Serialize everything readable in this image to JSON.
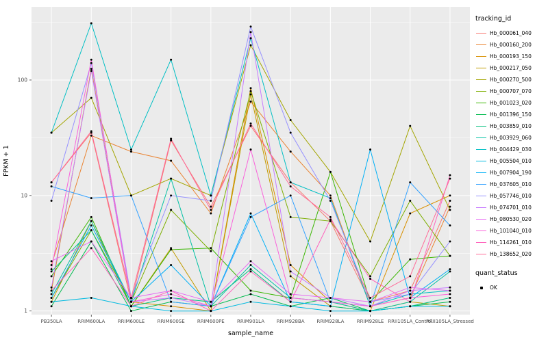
{
  "chart": {
    "chart_data": {
      "type": "line",
      "title": "",
      "xlabel": "sample_name",
      "ylabel": "FPKM + 1",
      "yscale": "log10",
      "grid": true,
      "legend_position": "right"
    },
    "xlabel": "sample_name",
    "ylabel": "FPKM + 1",
    "ylim": [
      0.93,
      430
    ],
    "yticks": [
      1,
      10,
      100
    ],
    "yminor": [
      3.162,
      31.62,
      316.2
    ],
    "categories": [
      "PB350LA",
      "RRIM600LA",
      "RRIM600LE",
      "RRIM600SE",
      "RRIM600PE",
      "RRIM901LA",
      "RRIM928BA",
      "RRIM928LA",
      "RRIM928LE",
      "RRII105LA_Control",
      "RRII105LA_Stressed"
    ],
    "legend_title": "tracking_id",
    "legend2_title": "quant_status",
    "legend2_items": [
      {
        "label": "OK"
      }
    ],
    "colors": {
      "panel_bg": "#EBEBEB",
      "grid": "#FFFFFF",
      "point": "#000000",
      "axis_text": "#4D4D4D"
    },
    "series": [
      {
        "name": "Hb_000061_040",
        "color": "#F8766D",
        "values": [
          13,
          35,
          1.2,
          30,
          8,
          40,
          13,
          6,
          1.2,
          1.5,
          9
        ]
      },
      {
        "name": "Hb_000160_200",
        "color": "#EA8331",
        "values": [
          2.5,
          33,
          24,
          20,
          7,
          65,
          24,
          10,
          1.1,
          1.3,
          8
        ]
      },
      {
        "name": "Hb_000193_150",
        "color": "#D89000",
        "values": [
          1.5,
          125,
          1.2,
          1.1,
          1.0,
          85,
          2.5,
          1.2,
          1.0,
          7,
          10
        ]
      },
      {
        "name": "Hb_000217_050",
        "color": "#C09B00",
        "values": [
          1.2,
          6,
          1.1,
          3.5,
          1.0,
          75,
          2.0,
          1.1,
          1.0,
          1.2,
          1.1
        ]
      },
      {
        "name": "Hb_000270_500",
        "color": "#A3A500",
        "values": [
          35,
          70,
          10,
          14,
          10,
          200,
          45,
          16,
          4,
          40,
          7.5
        ]
      },
      {
        "name": "Hb_000707_070",
        "color": "#7CAE00",
        "values": [
          1.3,
          5,
          1.2,
          7.5,
          3.3,
          80,
          6.5,
          6,
          2,
          9,
          3
        ]
      },
      {
        "name": "Hb_001023_020",
        "color": "#39B600",
        "values": [
          2.0,
          6.5,
          1.1,
          3.4,
          3.5,
          1.5,
          1.3,
          16,
          1.2,
          2.8,
          3
        ]
      },
      {
        "name": "Hb_001396_150",
        "color": "#00BB4E",
        "values": [
          1.1,
          4,
          1.0,
          1.2,
          1.1,
          1.4,
          1.1,
          1.3,
          1.0,
          1.1,
          1.2
        ]
      },
      {
        "name": "Hb_003859_010",
        "color": "#00BF7D",
        "values": [
          2.2,
          5,
          1.1,
          1.3,
          1.2,
          2.3,
          1.2,
          1.1,
          1.0,
          1.1,
          1.3
        ]
      },
      {
        "name": "Hb_003929_060",
        "color": "#00C1A3",
        "values": [
          1.4,
          6,
          1.2,
          14,
          1.1,
          2.5,
          1.3,
          1.2,
          1.0,
          1.2,
          2.2
        ]
      },
      {
        "name": "Hb_004429_030",
        "color": "#00BFC4",
        "values": [
          35,
          310,
          25,
          150,
          10,
          230,
          13,
          9.5,
          1.1,
          1.4,
          1.5
        ]
      },
      {
        "name": "Hb_005504_010",
        "color": "#00BAE0",
        "values": [
          1.2,
          1.3,
          1.1,
          1.0,
          1.0,
          1.2,
          1.1,
          1.0,
          1.0,
          1.1,
          1.1
        ]
      },
      {
        "name": "Hb_007904_190",
        "color": "#00B0F6",
        "values": [
          1.3,
          5.5,
          1.2,
          2.5,
          1.1,
          7,
          1.2,
          1.1,
          25,
          1.3,
          2.3
        ]
      },
      {
        "name": "Hb_037605_010",
        "color": "#35A2FF",
        "values": [
          12,
          9.5,
          10,
          1.2,
          1.1,
          6.5,
          10,
          1.2,
          1.1,
          13,
          5.5
        ]
      },
      {
        "name": "Hb_057746_010",
        "color": "#9590FF",
        "values": [
          9,
          140,
          1.3,
          10,
          9,
          290,
          35,
          9,
          1.2,
          1.4,
          4
        ]
      },
      {
        "name": "Hb_074701_010",
        "color": "#C77CFF",
        "values": [
          1.6,
          120,
          1.2,
          1.3,
          1.1,
          260,
          2.2,
          1.3,
          1.1,
          1.5,
          1.6
        ]
      },
      {
        "name": "Hb_080530_020",
        "color": "#E76BF3",
        "values": [
          2.7,
          4,
          1.3,
          1.5,
          1.2,
          2.7,
          1.4,
          1.3,
          1.2,
          1.6,
          1.5
        ]
      },
      {
        "name": "Hb_101040_010",
        "color": "#FA62DB",
        "values": [
          2.3,
          150,
          1.2,
          1.4,
          1.1,
          25,
          1.3,
          1.2,
          1.1,
          1.3,
          1.4
        ]
      },
      {
        "name": "Hb_114261_010",
        "color": "#FF62BC",
        "values": [
          1.5,
          3.5,
          1.1,
          1.5,
          1.0,
          2.2,
          1.2,
          6.2,
          1.9,
          1.2,
          15
        ]
      },
      {
        "name": "Hb_138652_020",
        "color": "#FF6A98",
        "values": [
          13,
          36,
          1.3,
          31,
          7.5,
          42,
          12,
          6.5,
          1.3,
          2.0,
          14
        ]
      }
    ]
  }
}
